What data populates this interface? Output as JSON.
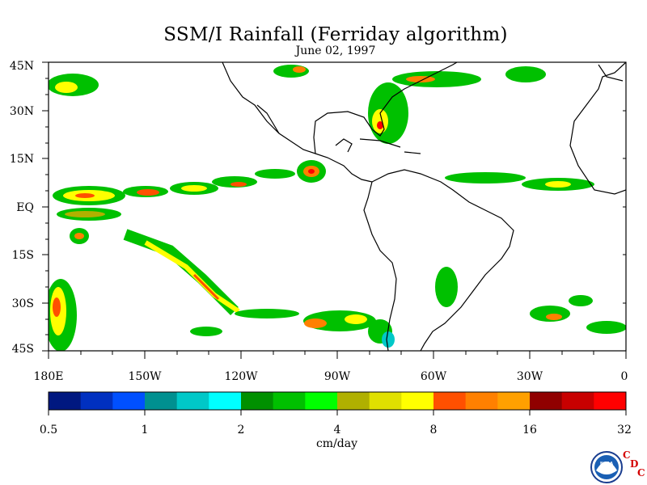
{
  "title": "SSM/I Rainfall (Ferriday algorithm)",
  "date": "June 02, 1997",
  "lat_labels": [
    "45N",
    "30N",
    "15N",
    "EQ",
    "15S",
    "30S",
    "45S"
  ],
  "lon_labels": [
    "180E",
    "150W",
    "120W",
    "90W",
    "60W",
    "30W",
    "0"
  ],
  "colorbar": {
    "units": "cm/day",
    "tick_labels": [
      "0.5",
      "1",
      "2",
      "4",
      "8",
      "16",
      "32"
    ],
    "colors": [
      "#001880",
      "#0030c0",
      "#0050ff",
      "#009090",
      "#00c8c8",
      "#00ffff",
      "#009000",
      "#00c000",
      "#00ff00",
      "#b0b000",
      "#e0e000",
      "#ffff00",
      "#ff5000",
      "#ff8000",
      "#ffa000",
      "#900000",
      "#c80000",
      "#ff0000"
    ]
  },
  "logo": {
    "text": "NOAA",
    "letters": [
      "C",
      "D",
      "C"
    ]
  }
}
